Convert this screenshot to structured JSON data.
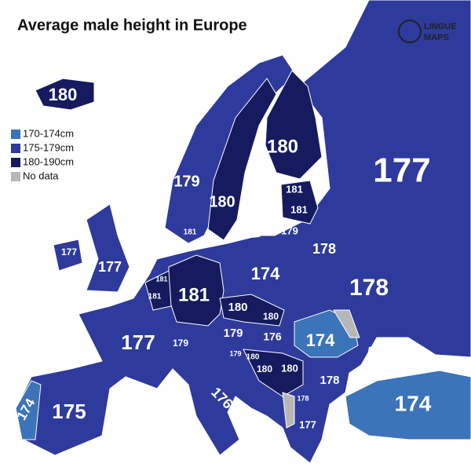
{
  "title": "Average male height in Europe",
  "logo": [
    "LINGUE",
    "MAPS"
  ],
  "legend": [
    {
      "label": "170-174cm",
      "color": "#3b74b8"
    },
    {
      "label": "175-179cm",
      "color": "#2e3a9c"
    },
    {
      "label": "180-190cm",
      "color": "#151b5e"
    },
    {
      "label": "No data",
      "color": "#b7b7b7"
    }
  ],
  "regions": [
    180,
    177,
    180,
    179,
    180,
    181,
    181,
    179,
    178,
    174,
    178,
    181,
    181,
    181,
    177,
    177,
    181,
    177,
    180,
    180,
    179,
    176,
    174,
    179,
    179,
    180,
    180,
    180,
    178,
    178,
    177,
    176,
    175,
    174,
    174
  ]
}
